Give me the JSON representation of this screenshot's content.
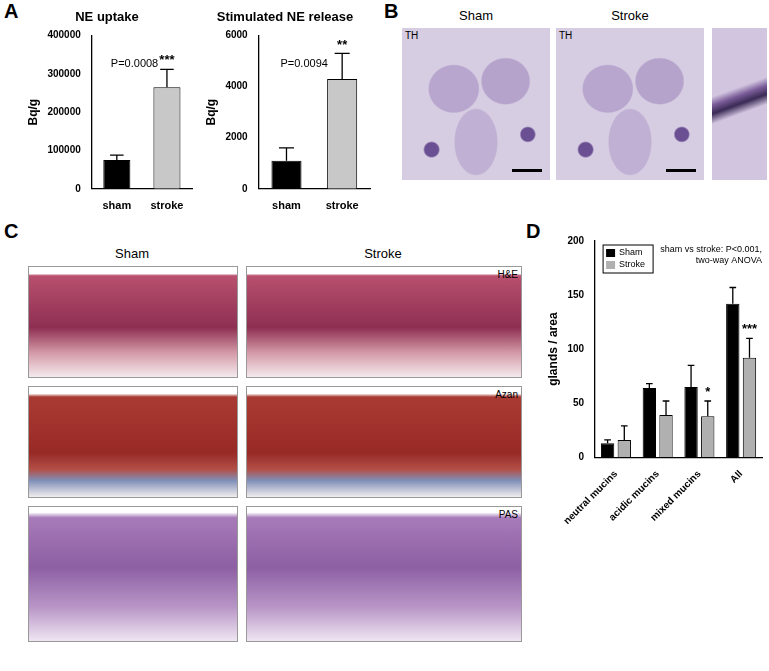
{
  "chart_data": [
    {
      "type": "bar",
      "title": "NE uptake",
      "y_label": "Bq/g",
      "categories": [
        "sham",
        "stroke"
      ],
      "values": [
        75000,
        265000
      ],
      "errors": [
        13000,
        47000
      ],
      "colors": [
        "#000000",
        "#c8c8c8"
      ],
      "significance": [
        null,
        "***"
      ],
      "annotations": [
        "P=0.0008"
      ],
      "ylim": [
        0,
        400000
      ],
      "yticks": [
        0,
        100000,
        200000,
        300000,
        400000
      ],
      "grid": false
    },
    {
      "type": "bar",
      "title": "Stimulated NE release",
      "y_label": "Bq/g",
      "categories": [
        "sham",
        "stroke"
      ],
      "values": [
        1100,
        4300
      ],
      "errors": [
        500,
        1000
      ],
      "colors": [
        "#000000",
        "#c8c8c8"
      ],
      "significance": [
        null,
        "**"
      ],
      "annotations": [
        "P=0.0094"
      ],
      "ylim": [
        0,
        6000
      ],
      "yticks": [
        0,
        2000,
        4000,
        6000
      ],
      "grid": false
    },
    {
      "type": "bar",
      "y_label": "glands / area",
      "categories": [
        "neutral mucins",
        "acidic mucins",
        "mixed mucins",
        "All"
      ],
      "series": [
        {
          "name": "Sham",
          "color": "#000000",
          "values": [
            13,
            64,
            65,
            142
          ],
          "errors": [
            3,
            4,
            20,
            15
          ]
        },
        {
          "name": "Stroke",
          "color": "#b0b0b0",
          "values": [
            16,
            39,
            38,
            92
          ],
          "errors": [
            13,
            13,
            14,
            18
          ],
          "significance": [
            null,
            null,
            "*",
            "***"
          ]
        }
      ],
      "annotations": [
        "sham vs stroke: P<0.001,",
        "two-way ANOVA"
      ],
      "ylim": [
        0,
        200
      ],
      "yticks": [
        0,
        50,
        100,
        150,
        200
      ],
      "grid": false,
      "legend": "top-left"
    }
  ],
  "panels": [
    {
      "letter": "A"
    },
    {
      "letter": "B",
      "columns": [
        "Sham",
        "Stroke"
      ],
      "stain": "TH"
    },
    {
      "letter": "C",
      "columns": [
        "Sham",
        "Stroke"
      ],
      "stains": [
        "H&E",
        "Azan",
        "PAS"
      ]
    },
    {
      "letter": "D"
    }
  ]
}
